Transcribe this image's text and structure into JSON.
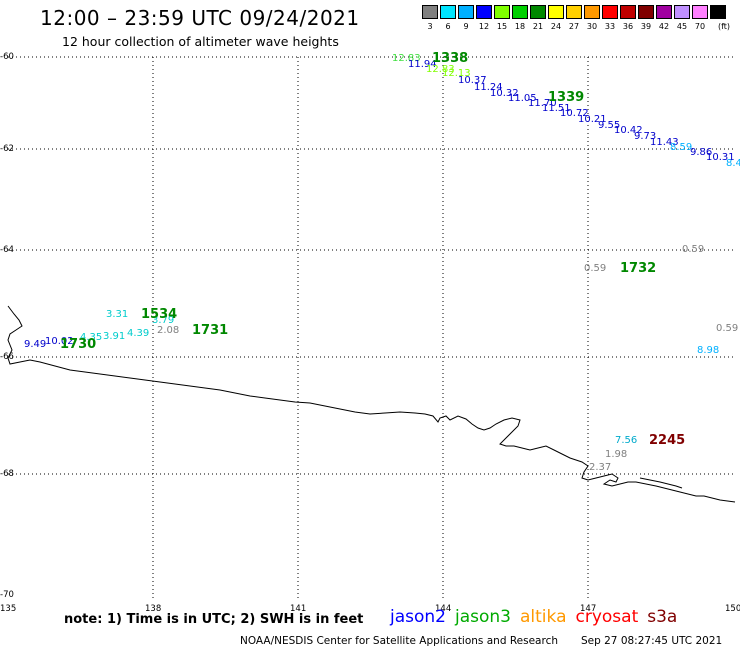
{
  "title": "12:00 – 23:59 UTC 09/24/2021",
  "subtitle": "12 hour collection of altimeter wave heights",
  "legend": {
    "unit": "(ft)",
    "items": [
      {
        "label": "3",
        "color": "#808080"
      },
      {
        "label": "6",
        "color": "#00e5ff"
      },
      {
        "label": "9",
        "color": "#00b0ff"
      },
      {
        "label": "12",
        "color": "#0000ff"
      },
      {
        "label": "15",
        "color": "#80ff00"
      },
      {
        "label": "18",
        "color": "#00d000"
      },
      {
        "label": "21",
        "color": "#008800"
      },
      {
        "label": "24",
        "color": "#ffff00"
      },
      {
        "label": "27",
        "color": "#ffd000"
      },
      {
        "label": "30",
        "color": "#ff9900"
      },
      {
        "label": "33",
        "color": "#ff0000"
      },
      {
        "label": "36",
        "color": "#c00000"
      },
      {
        "label": "39",
        "color": "#800000"
      },
      {
        "label": "42",
        "color": "#a000a0"
      },
      {
        "label": "45",
        "color": "#c090ff"
      },
      {
        "label": "70",
        "color": "#ff80ff"
      },
      {
        "label": "",
        "color": "#000000"
      }
    ]
  },
  "axes": {
    "lat_labels": [
      "-60",
      "-62",
      "-64",
      "-66",
      "-68",
      "-70"
    ],
    "lon_labels": [
      "135",
      "138",
      "141",
      "144",
      "147",
      "150"
    ]
  },
  "observations": [
    {
      "text": "12.83",
      "color": "#40e040"
    },
    {
      "text": "11.94",
      "color": "#0000cc"
    },
    {
      "text": "12.83",
      "color": "#80ff00"
    },
    {
      "text": "12.13",
      "color": "#80ff00"
    },
    {
      "text": "10.37",
      "color": "#0000cc"
    },
    {
      "text": "11.24",
      "color": "#0000cc"
    },
    {
      "text": "10.32",
      "color": "#0000cc"
    },
    {
      "text": "11.05",
      "color": "#0000cc"
    },
    {
      "text": "11.70",
      "color": "#0000cc"
    },
    {
      "text": "11.51",
      "color": "#0000cc"
    },
    {
      "text": "10.72",
      "color": "#0000cc"
    },
    {
      "text": "10.21",
      "color": "#0000cc"
    },
    {
      "text": "9.55",
      "color": "#0000cc"
    },
    {
      "text": "10.42",
      "color": "#0000cc"
    },
    {
      "text": "9.73",
      "color": "#0000cc"
    },
    {
      "text": "11.43",
      "color": "#0000cc"
    },
    {
      "text": "8.59",
      "color": "#00b0ff"
    },
    {
      "text": "9.86",
      "color": "#0000cc"
    },
    {
      "text": "10.31",
      "color": "#0000cc"
    },
    {
      "text": "8.4",
      "color": "#00b0ff"
    },
    {
      "text": "0.59",
      "color": "#808080"
    },
    {
      "text": "0.59",
      "color": "#808080"
    },
    {
      "text": "0.59",
      "color": "#808080"
    },
    {
      "text": "8.98",
      "color": "#00b0ff"
    },
    {
      "text": "3.31",
      "color": "#00cccc"
    },
    {
      "text": "3.79",
      "color": "#00cccc"
    },
    {
      "text": "2.08",
      "color": "#808080"
    },
    {
      "text": "9.49",
      "color": "#0000cc"
    },
    {
      "text": "10.02",
      "color": "#0000cc"
    },
    {
      "text": "4.35",
      "color": "#00cccc"
    },
    {
      "text": "3.91",
      "color": "#00cccc"
    },
    {
      "text": "4.39",
      "color": "#00cccc"
    },
    {
      "text": "7.56",
      "color": "#00aacc"
    },
    {
      "text": "1.98",
      "color": "#808080"
    },
    {
      "text": "2.37",
      "color": "#808080"
    }
  ],
  "pass_times": [
    {
      "text": "1338",
      "color": "#008800"
    },
    {
      "text": "1339",
      "color": "#008800"
    },
    {
      "text": "1732",
      "color": "#008800"
    },
    {
      "text": "1534",
      "color": "#008800"
    },
    {
      "text": "1731",
      "color": "#008800"
    },
    {
      "text": "1730",
      "color": "#008800"
    },
    {
      "text": "2245",
      "color": "#800000"
    }
  ],
  "note": "note:  1) Time is in UTC;  2) SWH is in feet",
  "satellites": [
    {
      "name": "jason2",
      "color": "#0000ff"
    },
    {
      "name": "jason3",
      "color": "#00aa00"
    },
    {
      "name": "altika",
      "color": "#ff9900"
    },
    {
      "name": "cryosat",
      "color": "#ff0000"
    },
    {
      "name": "s3a",
      "color": "#800000"
    }
  ],
  "footer": "NOAA/NESDIS Center for Satellite Applications and Research",
  "footer_date": "Sep 27 08:27:45 UTC 2021"
}
